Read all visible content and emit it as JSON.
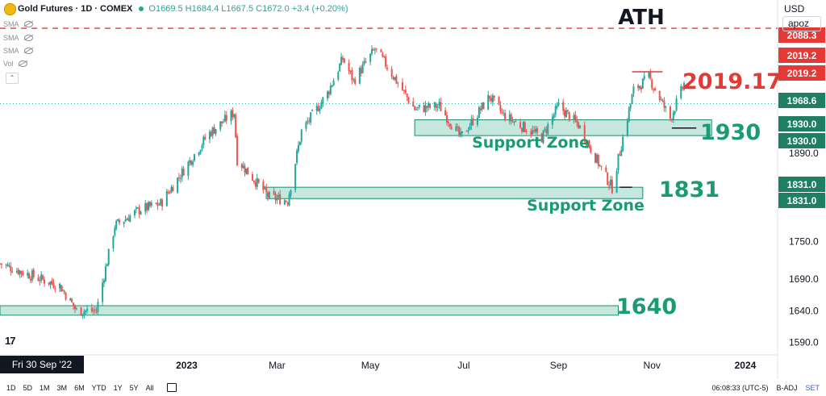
{
  "header": {
    "symbol": "Gold Futures · 1D · COMEX",
    "ohlc": "O1669.5 H1684.4 L1667.5 C1672.0 +3.4 (+0.20%)"
  },
  "indicators": [
    "SMA",
    "SMA",
    "SMA",
    "Vol"
  ],
  "currency": "USD",
  "account": "apoz",
  "timeframes": [
    "1D",
    "5D",
    "1M",
    "3M",
    "6M",
    "YTD",
    "1Y",
    "5Y",
    "All"
  ],
  "status": {
    "time": "06:08:33 (UTC-5)",
    "adj": "B-ADJ",
    "set": "SET"
  },
  "tv_logo": "17",
  "colors": {
    "up": "#26a69a",
    "down": "#ef5350",
    "zone_fill": "#b2dfd2",
    "zone_edge": "#1b8c6a",
    "zone_text": "#1b9b74",
    "ath": "#e53935",
    "crosshair_bg": "#131722"
  },
  "chart_data": {
    "type": "candlestick",
    "yaxis": {
      "min": 1570,
      "max": 2105,
      "ticks": [
        1590.0,
        1640.0,
        1690.0,
        1750.0,
        1890.0
      ],
      "tick_labels": [
        "1590.0",
        "1640.0",
        "1690.0",
        "1750.0",
        "1890.0"
      ]
    },
    "xaxis": {
      "start": "2022-09-01",
      "end": "2024-01-20",
      "ticks": [
        {
          "date": "2023-01-01",
          "label": "2023",
          "bold": true
        },
        {
          "date": "2023-03-01",
          "label": "Mar",
          "bold": false
        },
        {
          "date": "2023-05-01",
          "label": "May",
          "bold": false
        },
        {
          "date": "2023-07-01",
          "label": "Jul",
          "bold": false
        },
        {
          "date": "2023-09-01",
          "label": "Sep",
          "bold": false
        },
        {
          "date": "2023-11-01",
          "label": "Nov",
          "bold": false
        },
        {
          "date": "2024-01-01",
          "label": "2024",
          "bold": true
        }
      ],
      "crosshair": {
        "date": "2022-09-30",
        "label": "Fri 30 Sep '22"
      }
    },
    "anchors": [
      [
        "2022-09-01",
        1715
      ],
      [
        "2022-09-28",
        1690
      ],
      [
        "2022-10-10",
        1680
      ],
      [
        "2022-10-21",
        1640
      ],
      [
        "2022-11-03",
        1640
      ],
      [
        "2022-11-15",
        1775
      ],
      [
        "2022-12-01",
        1800
      ],
      [
        "2022-12-15",
        1810
      ],
      [
        "2023-01-15",
        1920
      ],
      [
        "2023-02-01",
        1955
      ],
      [
        "2023-02-03",
        1880
      ],
      [
        "2023-02-24",
        1820
      ],
      [
        "2023-03-08",
        1815
      ],
      [
        "2023-03-17",
        1925
      ],
      [
        "2023-04-03",
        1985
      ],
      [
        "2023-04-13",
        2040
      ],
      [
        "2023-04-20",
        2005
      ],
      [
        "2023-05-04",
        2055
      ],
      [
        "2023-05-10",
        2035
      ],
      [
        "2023-05-30",
        1960
      ],
      [
        "2023-06-15",
        1965
      ],
      [
        "2023-06-29",
        1915
      ],
      [
        "2023-07-18",
        1980
      ],
      [
        "2023-07-27",
        1950
      ],
      [
        "2023-08-21",
        1915
      ],
      [
        "2023-09-01",
        1965
      ],
      [
        "2023-09-14",
        1935
      ],
      [
        "2023-09-29",
        1865
      ],
      [
        "2023-10-06",
        1835
      ],
      [
        "2023-10-13",
        1915
      ],
      [
        "2023-10-20",
        1990
      ],
      [
        "2023-10-30",
        2010
      ],
      [
        "2023-11-13",
        1945
      ],
      [
        "2023-11-22",
        2000
      ]
    ],
    "zones": [
      {
        "from": "2023-05-30",
        "to": "2023-12-10",
        "low": 1918,
        "high": 1943
      },
      {
        "from": "2023-02-22",
        "to": "2023-10-26",
        "low": 1818,
        "high": 1836
      },
      {
        "from": "2022-09-01",
        "to": "2023-10-10",
        "low": 1633,
        "high": 1648
      }
    ],
    "lines": [
      {
        "kind": "ath",
        "price": 2088.3,
        "style": "dashed"
      },
      {
        "kind": "resistance",
        "price": 2019.17,
        "from": "2023-10-19",
        "to": "2023-11-08"
      },
      {
        "kind": "marker",
        "price": 1930,
        "from": "2023-11-14",
        "to": "2023-11-30"
      },
      {
        "kind": "marker",
        "price": 1836,
        "from": "2023-10-11",
        "to": "2023-10-19"
      }
    ],
    "annotations": [
      {
        "text": "ATH"
      },
      {
        "text": "2019.17"
      },
      {
        "text": "1930"
      },
      {
        "text": "1831"
      },
      {
        "text": "1640"
      },
      {
        "text": "Support Zone"
      },
      {
        "text": "Support Zone"
      }
    ],
    "price_labels": [
      {
        "text": "2088.3",
        "value": 2088.3,
        "kind": "ath"
      },
      {
        "text": "2019.2",
        "value": 2019.2,
        "kind": "ath"
      },
      {
        "text": "2019.2",
        "value": 2019.2,
        "kind": "ath"
      },
      {
        "text": "1968.6",
        "value": 1968.6,
        "kind": "zone"
      },
      {
        "text": "1930.0",
        "value": 1930.0,
        "kind": "zone"
      },
      {
        "text": "1930.0",
        "value": 1930.0,
        "kind": "zone"
      },
      {
        "text": "1831.0",
        "value": 1831.0,
        "kind": "zone"
      },
      {
        "text": "1831.0",
        "value": 1831.0,
        "kind": "zone"
      }
    ]
  }
}
